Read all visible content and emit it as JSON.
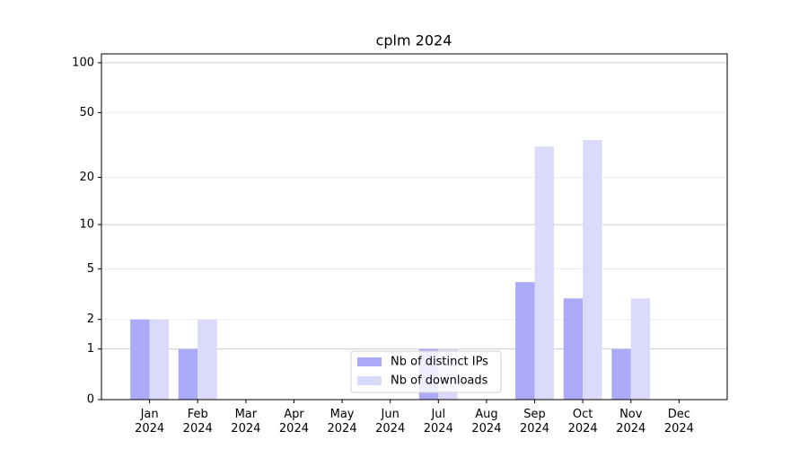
{
  "chart_data": {
    "type": "bar",
    "title": "cplm 2024",
    "categories": [
      "Jan\n2024",
      "Feb\n2024",
      "Mar\n2024",
      "Apr\n2024",
      "May\n2024",
      "Jun\n2024",
      "Jul\n2024",
      "Aug\n2024",
      "Sep\n2024",
      "Oct\n2024",
      "Nov\n2024",
      "Dec\n2024"
    ],
    "series": [
      {
        "name": "Nb of distinct IPs",
        "color": "#aaaaf8",
        "values": [
          2,
          1,
          0,
          0,
          0,
          0,
          1,
          0,
          4,
          3,
          1,
          0
        ]
      },
      {
        "name": "Nb of downloads",
        "color": "#dadafa",
        "values": [
          2,
          2,
          0,
          0,
          0,
          0,
          1,
          0,
          31,
          34,
          3,
          0
        ]
      }
    ],
    "y_scale": "log1p",
    "ylim": [
      0,
      113
    ],
    "yticks": [
      0,
      1,
      2,
      5,
      10,
      20,
      50,
      100
    ],
    "grid": true,
    "legend": "lower center"
  }
}
